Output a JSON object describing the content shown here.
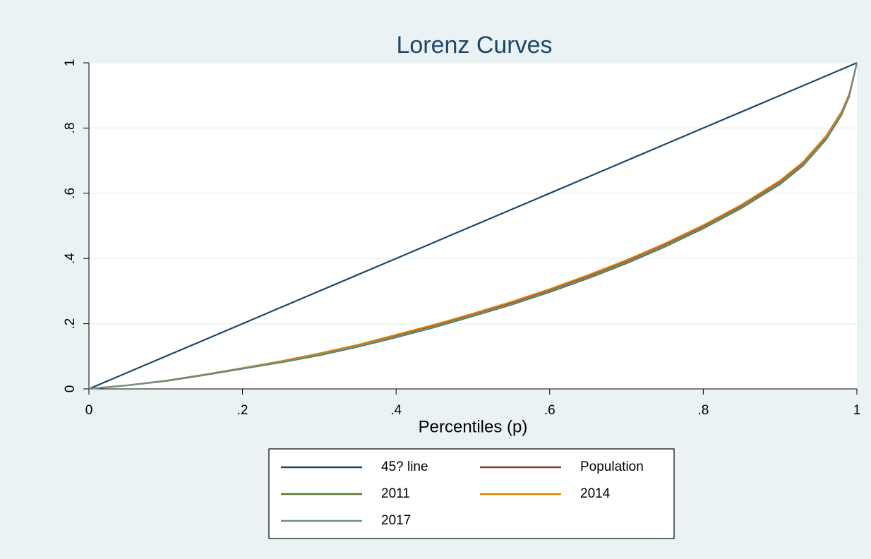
{
  "chart_data": {
    "type": "line",
    "title": "Lorenz Curves",
    "x_label": "Percentiles (p)",
    "x": [
      0,
      0.05,
      0.1,
      0.15,
      0.2,
      0.25,
      0.3,
      0.35,
      0.4,
      0.45,
      0.5,
      0.55,
      0.6,
      0.65,
      0.7,
      0.75,
      0.8,
      0.85,
      0.9,
      0.93,
      0.96,
      0.98,
      0.99,
      1
    ],
    "series": [
      {
        "name": "45? line",
        "color": "#1a476f",
        "values": [
          0,
          0.05,
          0.1,
          0.15,
          0.2,
          0.25,
          0.3,
          0.35,
          0.4,
          0.45,
          0.5,
          0.55,
          0.6,
          0.65,
          0.7,
          0.75,
          0.8,
          0.85,
          0.9,
          0.93,
          0.96,
          0.98,
          0.99,
          1
        ]
      },
      {
        "name": "Population",
        "color": "#90353b",
        "values": [
          0,
          0.011,
          0.025,
          0.043,
          0.063,
          0.083,
          0.106,
          0.132,
          0.162,
          0.193,
          0.227,
          0.262,
          0.302,
          0.344,
          0.39,
          0.441,
          0.497,
          0.56,
          0.634,
          0.69,
          0.77,
          0.845,
          0.9,
          1
        ]
      },
      {
        "name": "2011",
        "color": "#55752f",
        "values": [
          0,
          0.011,
          0.024,
          0.042,
          0.062,
          0.081,
          0.103,
          0.129,
          0.158,
          0.189,
          0.223,
          0.258,
          0.297,
          0.339,
          0.385,
          0.436,
          0.492,
          0.555,
          0.628,
          0.685,
          0.765,
          0.84,
          0.897,
          1
        ]
      },
      {
        "name": "2014",
        "color": "#e37e00",
        "values": [
          0,
          0.011,
          0.025,
          0.044,
          0.064,
          0.085,
          0.109,
          0.135,
          0.166,
          0.197,
          0.231,
          0.267,
          0.306,
          0.349,
          0.395,
          0.446,
          0.502,
          0.565,
          0.639,
          0.696,
          0.776,
          0.85,
          0.904,
          1
        ]
      },
      {
        "name": "2017",
        "color": "#6e8e84",
        "values": [
          0,
          0.011,
          0.025,
          0.043,
          0.063,
          0.082,
          0.105,
          0.131,
          0.16,
          0.191,
          0.225,
          0.26,
          0.3,
          0.342,
          0.388,
          0.439,
          0.495,
          0.558,
          0.632,
          0.688,
          0.768,
          0.843,
          0.899,
          1
        ]
      }
    ],
    "xlim": [
      0,
      1
    ],
    "ylim": [
      0,
      1
    ],
    "xticks": [
      0,
      {
        "value": 0.2,
        "label": ".2"
      },
      {
        "value": 0.4,
        "label": ".4"
      },
      {
        "value": 0.6,
        "label": ".6"
      },
      {
        "value": 0.8,
        "label": ".8"
      },
      1
    ],
    "yticks": [
      0,
      {
        "value": 0.2,
        "label": ".2"
      },
      {
        "value": 0.4,
        "label": ".4"
      },
      {
        "value": 0.6,
        "label": ".6"
      },
      {
        "value": 0.8,
        "label": ".8"
      },
      1
    ],
    "grid": true
  }
}
